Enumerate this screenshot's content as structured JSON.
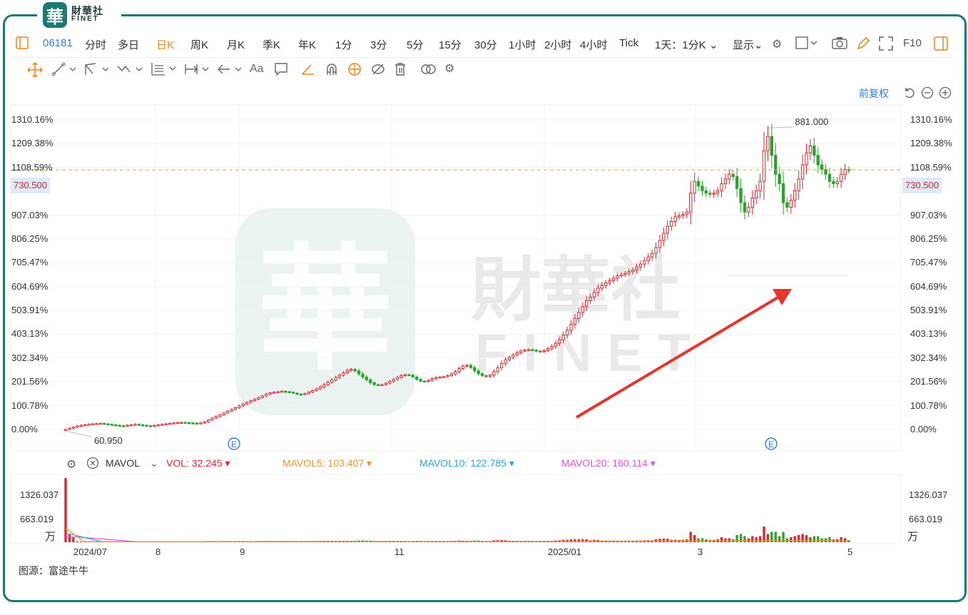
{
  "toolbar": {
    "code": "06181",
    "periods": [
      "分时",
      "多日",
      "日K",
      "周K",
      "月K",
      "季K",
      "年K",
      "1分",
      "3分",
      "5分",
      "15分",
      "30分",
      "1小时",
      "2小时",
      "4小时",
      "Tick"
    ],
    "active_period": "日K",
    "range_select": "1天：1分K",
    "display": "显示",
    "f10": "F10"
  },
  "drawtools": {
    "text_tool": "Aa"
  },
  "logo": {
    "cn": "財華社",
    "en": "FINET"
  },
  "watermark": {
    "cn": "財華社",
    "en": "FINET"
  },
  "chart_data": {
    "type": "candlestick",
    "y_axis_labels": [
      "1310.16%",
      "1209.38%",
      "1108.59%",
      "907.03%",
      "806.25%",
      "705.47%",
      "604.69%",
      "503.91%",
      "403.13%",
      "302.34%",
      "201.56%",
      "100.78%",
      "0.00%"
    ],
    "y_axis_values_pct": [
      1310.16,
      1209.38,
      1108.59,
      907.03,
      806.25,
      705.47,
      604.69,
      503.91,
      403.13,
      302.34,
      201.56,
      100.78,
      0.0
    ],
    "current_price": "730.500",
    "high_label": "881.000",
    "low_label": "60.950",
    "base_price": 60.95,
    "x_tick_labels": [
      "2024/07",
      "8",
      "9",
      "11",
      "2025/01",
      "3",
      "5"
    ],
    "event_markers": [
      "E",
      "E"
    ],
    "close_trend_pct": [
      0,
      5,
      10,
      15,
      18,
      20,
      22,
      24,
      25,
      26,
      24,
      22,
      20,
      18,
      16,
      15,
      18,
      20,
      22,
      20,
      18,
      16,
      15,
      17,
      20,
      22,
      24,
      26,
      28,
      30,
      30,
      29,
      28,
      27,
      26,
      28,
      32,
      40,
      48,
      55,
      62,
      70,
      78,
      85,
      92,
      100,
      108,
      115,
      122,
      128,
      135,
      142,
      150,
      155,
      158,
      160,
      162,
      160,
      158,
      154,
      150,
      148,
      152,
      158,
      165,
      172,
      180,
      190,
      200,
      210,
      220,
      230,
      240,
      250,
      255,
      248,
      235,
      222,
      210,
      198,
      190,
      188,
      190,
      196,
      204,
      212,
      220,
      228,
      232,
      230,
      222,
      212,
      205,
      203,
      208,
      215,
      220,
      222,
      224,
      228,
      235,
      245,
      258,
      268,
      272,
      262,
      248,
      236,
      228,
      224,
      230,
      245,
      262,
      280,
      295,
      305,
      315,
      325,
      332,
      336,
      338,
      336,
      332,
      330,
      334,
      342,
      352,
      365,
      380,
      400,
      420,
      445,
      470,
      495,
      520,
      545,
      560,
      580,
      598,
      610,
      620,
      630,
      640,
      650,
      655,
      660,
      668,
      675,
      688,
      700,
      715,
      730,
      745,
      770,
      800,
      830,
      860,
      880,
      900,
      905,
      910,
      920,
      1000,
      1050,
      1030,
      1010,
      1000,
      995,
      1000,
      1010,
      1040,
      1060,
      1080,
      1070,
      1020,
      960,
      920,
      940,
      980,
      1010,
      1050,
      1180,
      1240,
      1160,
      1080,
      1040,
      960,
      940,
      970,
      1010,
      1060,
      1120,
      1170,
      1200,
      1160,
      1120,
      1100,
      1080,
      1050,
      1040,
      1050,
      1080,
      1100,
      1098
    ],
    "volume_panel": {
      "indicator": "MAVOL",
      "labels": [
        "VOL: 32.245",
        "MAVOL5: 103.407",
        "MAVOL10: 122.785",
        "MAVOL20: 160.114"
      ],
      "y_axis_labels": [
        "1326.037",
        "663.019"
      ],
      "unit": "万",
      "max": 1326.037
    }
  },
  "colors": {
    "up": "#e0262c",
    "down": "#2aa52a",
    "vol": "#e0262c",
    "mavol5": "#f0941c",
    "mavol10": "#25a8d8",
    "mavol20": "#e84fdb",
    "accent": "#1c7a73",
    "link": "#2f7fd8"
  },
  "source": "图源：富途牛牛"
}
